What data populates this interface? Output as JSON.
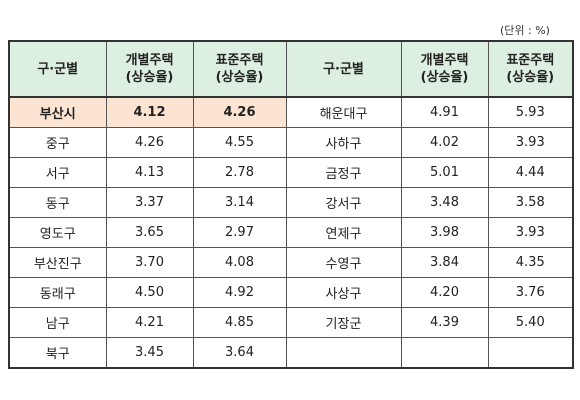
{
  "unit": "(단위 : %)",
  "table": {
    "header": [
      [
        "구·군별"
      ],
      [
        "개별주택",
        "(상승율)"
      ],
      [
        "표준주택",
        "(상승율)"
      ],
      [
        "구·군별"
      ],
      [
        "개별주택",
        "(상승율)"
      ],
      [
        "표준주택",
        "(상승율)"
      ]
    ],
    "rows": [
      [
        "부산시",
        "4.12",
        "4.26",
        "해운대구",
        "4.91",
        "5.93"
      ],
      [
        "중구",
        "4.26",
        "4.55",
        "사하구",
        "4.02",
        "3.93"
      ],
      [
        "서구",
        "4.13",
        "2.78",
        "금정구",
        "5.01",
        "4.44"
      ],
      [
        "동구",
        "3.37",
        "3.14",
        "강서구",
        "3.48",
        "3.58"
      ],
      [
        "영도구",
        "3.65",
        "2.97",
        "연제구",
        "3.98",
        "3.93"
      ],
      [
        "부산진구",
        "3.70",
        "4.08",
        "수영구",
        "3.84",
        "4.35"
      ],
      [
        "동래구",
        "4.50",
        "4.92",
        "사상구",
        "4.20",
        "3.76"
      ],
      [
        "남구",
        "4.21",
        "4.85",
        "기장군",
        "4.39",
        "5.40"
      ],
      [
        "북구",
        "3.45",
        "3.64"
      ]
    ]
  }
}
